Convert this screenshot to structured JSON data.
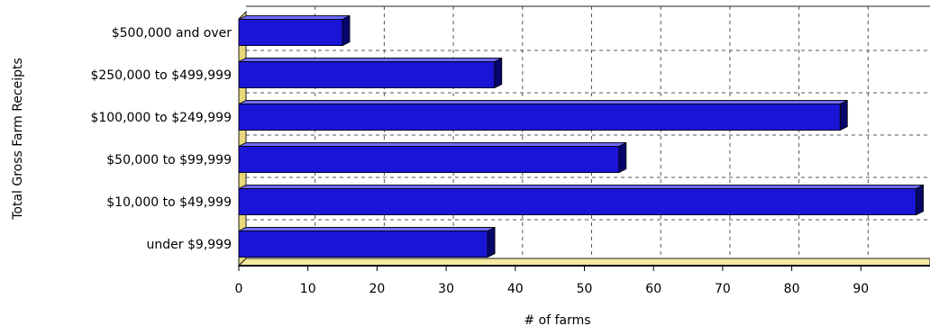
{
  "chart_data": {
    "type": "bar",
    "orientation": "horizontal",
    "categories": [
      "$500,000 and over",
      "$250,000 to $499,999",
      "$100,000 to $249,999",
      "$50,000 to $99,999",
      "$10,000 to $49,999",
      "under $9,999"
    ],
    "values": [
      15,
      37,
      87,
      55,
      98,
      36
    ],
    "xlabel": "# of farms",
    "ylabel": "Total Gross Farm Receipts",
    "xlim": [
      0,
      100
    ],
    "xticks": [
      0,
      10,
      20,
      30,
      40,
      50,
      60,
      70,
      80,
      90
    ],
    "grid": true,
    "legend": "none",
    "colors": {
      "bar": "#1a14d6",
      "bar_dark": "#06066a",
      "bar_light": "#6f6cff",
      "wall_edge": "#e8d87a",
      "grid": "#555555"
    }
  }
}
